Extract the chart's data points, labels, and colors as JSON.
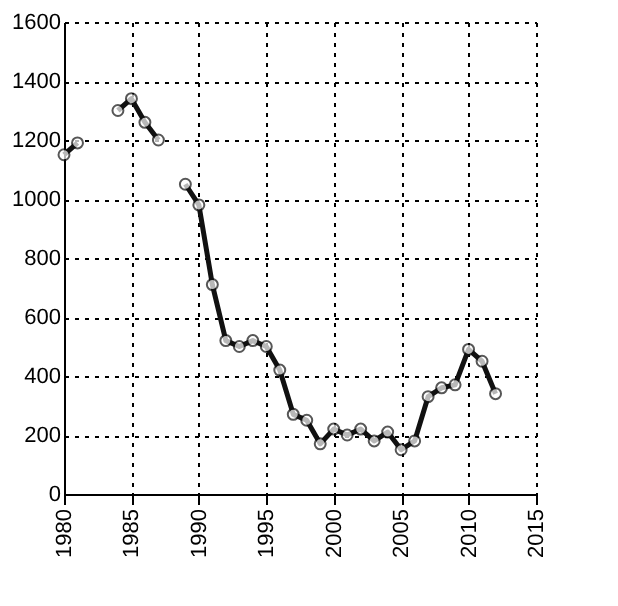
{
  "chart_data": {
    "type": "line",
    "x": [
      1980,
      1981,
      1982,
      1983,
      1984,
      1985,
      1986,
      1987,
      1988,
      1989,
      1990,
      1991,
      1992,
      1993,
      1994,
      1995,
      1996,
      1997,
      1998,
      1999,
      2000,
      2001,
      2002,
      2003,
      2004,
      2005,
      2006,
      2007,
      2008,
      2009,
      2010,
      2011,
      2012
    ],
    "series": [
      {
        "color": "#111111",
        "values": [
          1150,
          1190,
          null,
          null,
          1300,
          1340,
          1260,
          1200,
          null,
          1050,
          980,
          710,
          520,
          500,
          520,
          500,
          420,
          270,
          250,
          170,
          220,
          200,
          220,
          180,
          210,
          150,
          180,
          330,
          360,
          370,
          490,
          450,
          340
        ]
      }
    ],
    "xlim": [
      1980,
      2015
    ],
    "xticks": [
      1980,
      1985,
      1990,
      1995,
      2000,
      2005,
      2010,
      2015
    ],
    "ylim": [
      0,
      1600
    ],
    "yticks": [
      0,
      200,
      400,
      600,
      800,
      1000,
      1200,
      1400,
      1600
    ],
    "grid": true,
    "marker": "circle",
    "line_style": "solid"
  }
}
